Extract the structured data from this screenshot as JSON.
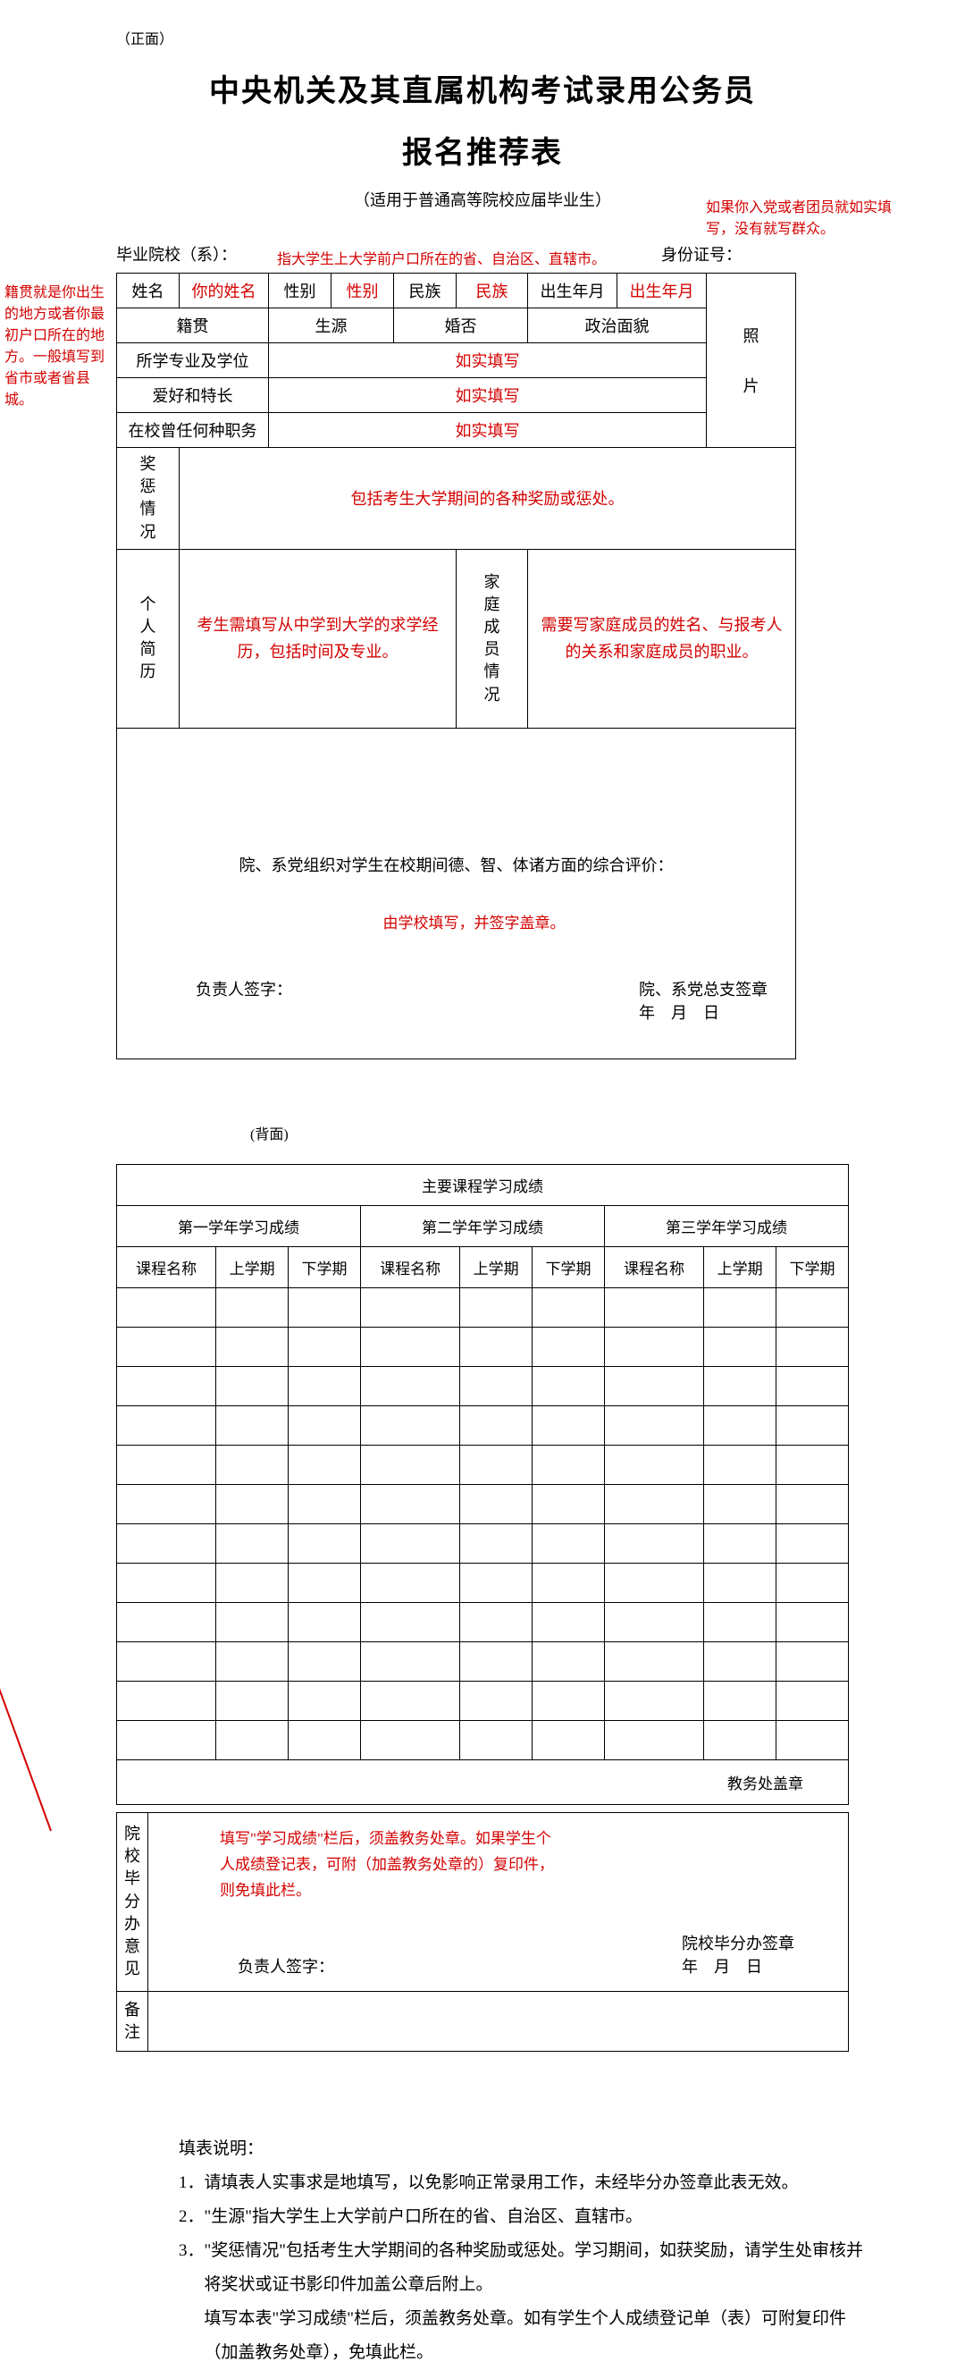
{
  "colors": {
    "text": "#000000",
    "annotation": "#d40000",
    "border": "#000000",
    "bg": "#ffffff"
  },
  "font": {
    "body_size": 18,
    "title_size": 34,
    "annotation_size": 16
  },
  "page_label_front": "（正面）",
  "page_label_back": "(背面)",
  "title": "中央机关及其直属机构考试录用公务员",
  "subtitle": "报名推荐表",
  "sub_note": "（适用于普通高等院校应届毕业生）",
  "annotations": {
    "jiguan": "籍贯就是你出生的地方或者你最初户口所在的地方。一般填写到省市或者省县城。",
    "shengyuan": "指大学生上大学前户口所在的省、自治区、直辖市。",
    "zhengzhi": "如果你入党或者团员就如实填写，没有就写群众。",
    "eval": "由学校填写，并签字盖章。",
    "grades": "填写\"学习成绩\"栏后，须盖教务处章。如果学生个人成绩登记表，可附（加盖教务处章的）复印件，则免填此栏。"
  },
  "header": {
    "school": "毕业院校（系）：",
    "id": "身份证号："
  },
  "row1": {
    "name_l": "姓名",
    "name_v": "你的姓名",
    "sex_l": "性别",
    "sex_v": "性别",
    "eth_l": "民族",
    "eth_v": "民族",
    "birth_l": "出生年月",
    "birth_v": "出生年月"
  },
  "row2": {
    "jiguan_l": "籍贯",
    "sy_l": "生源",
    "hun_l": "婚否",
    "zz_l": "政治面貌"
  },
  "row3": {
    "l": "所学专业及学位",
    "v": "如实填写"
  },
  "row4": {
    "l": "爱好和特长",
    "v": "如实填写"
  },
  "row5": {
    "l": "在校曾任何种职务",
    "v": "如实填写"
  },
  "photo": {
    "l1": "照",
    "l2": "片"
  },
  "reward": {
    "l": "奖惩情况",
    "v": "包括考生大学期间的各种奖励或惩处。"
  },
  "resume": {
    "l": "个人简历",
    "v": "考生需填写从中学到大学的求学经历，包括时间及专业。"
  },
  "family": {
    "l": "家庭成员情况",
    "v": "需要写家庭成员的姓名、与报考人的关系和家庭成员的职业。"
  },
  "eval": {
    "title": "院、系党组织对学生在校期间德、智、体诸方面的综合评价：",
    "sign": "负责人签字：",
    "seal": "院、系党总支签章",
    "date": "年　月　日"
  },
  "grades": {
    "title": "主要课程学习成绩",
    "y1": "第一学年学习成绩",
    "y2": "第二学年学习成绩",
    "y3": "第三学年学习成绩",
    "course": "课程名称",
    "sem1": "上学期",
    "sem2": "下学期",
    "dean": "教务处盖章",
    "empty_row_count": 12
  },
  "dept": {
    "l": "院校毕分办意见",
    "sign": "负责人签字：",
    "seal": "院校毕分办签章",
    "date": "年　月　日"
  },
  "beizhu": "备注",
  "instructions": {
    "title": "填表说明：",
    "i1": "1．请填表人实事求是地填写，以免影响正常录用工作，未经毕分办签章此表无效。",
    "i2": "2．\"生源\"指大学生上大学前户口所在的省、自治区、直辖市。",
    "i3": "3．\"奖惩情况\"包括考生大学期间的各种奖励或惩处。学习期间，如获奖励，请学生处审核并将奖状或证书影印件加盖公章后附上。",
    "i4": "填写本表\"学习成绩\"栏后，须盖教务处章。如有学生个人成绩登记单（表）可附复印件（加盖教务处章），免填此栏。"
  }
}
